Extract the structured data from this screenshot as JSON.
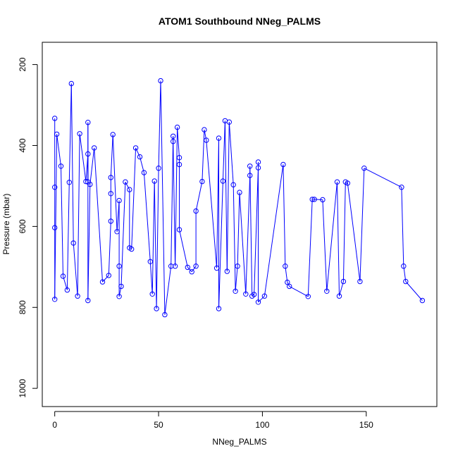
{
  "chart_data": {
    "type": "scatter",
    "title": "ATOM1 Southbound NNeg_PALMS",
    "xlabel": "NNeg_PALMS",
    "ylabel": "Pressure (mbar)",
    "xlim": [
      -6,
      184
    ],
    "ylim": [
      1045,
      145
    ],
    "y_reversed": true,
    "x_ticks": [
      0,
      50,
      100,
      150
    ],
    "y_ticks": [
      200,
      400,
      600,
      800,
      1000
    ],
    "grid": false,
    "legend": "none",
    "line_color": "#0000ff",
    "marker": "open-circle",
    "series": [
      {
        "points": [
          [
            0,
            333
          ],
          [
            0,
            503
          ],
          [
            0,
            603
          ],
          [
            0,
            780
          ],
          [
            1,
            372
          ],
          [
            3,
            451
          ],
          [
            4,
            723
          ],
          [
            6,
            757
          ],
          [
            7,
            491
          ],
          [
            8,
            247
          ],
          [
            9,
            641
          ],
          [
            11,
            772
          ],
          [
            12,
            371
          ],
          [
            15,
            489
          ],
          [
            16,
            421
          ],
          [
            16,
            490
          ],
          [
            16,
            343
          ],
          [
            16,
            783
          ],
          [
            17,
            496
          ],
          [
            19,
            406
          ],
          [
            23,
            737
          ],
          [
            26,
            721
          ],
          [
            27,
            587
          ],
          [
            27,
            519
          ],
          [
            27,
            479
          ],
          [
            28,
            373
          ],
          [
            30,
            613
          ],
          [
            31,
            536
          ],
          [
            31,
            698
          ],
          [
            31,
            773
          ],
          [
            32,
            748
          ],
          [
            34,
            490
          ],
          [
            36,
            509
          ],
          [
            36,
            653
          ],
          [
            37,
            656
          ],
          [
            39,
            406
          ],
          [
            41,
            428
          ],
          [
            43,
            467
          ],
          [
            46,
            687
          ],
          [
            47,
            767
          ],
          [
            48,
            488
          ],
          [
            49,
            803
          ],
          [
            50,
            456
          ],
          [
            51,
            240
          ],
          [
            53,
            818
          ],
          [
            56,
            698
          ],
          [
            57,
            377
          ],
          [
            57,
            390
          ],
          [
            58,
            698
          ],
          [
            59,
            355
          ],
          [
            60,
            430
          ],
          [
            60,
            447
          ],
          [
            60,
            608
          ],
          [
            64,
            701
          ],
          [
            66,
            712
          ],
          [
            68,
            698
          ],
          [
            68,
            562
          ],
          [
            71,
            489
          ],
          [
            72,
            361
          ],
          [
            73,
            387
          ],
          [
            78,
            703
          ],
          [
            79,
            382
          ],
          [
            79,
            803
          ],
          [
            81,
            488
          ],
          [
            82,
            339
          ],
          [
            83,
            711
          ],
          [
            84,
            342
          ],
          [
            86,
            497
          ],
          [
            87,
            760
          ],
          [
            88,
            698
          ],
          [
            89,
            516
          ],
          [
            92,
            767
          ],
          [
            94,
            474
          ],
          [
            94,
            451
          ],
          [
            95,
            772
          ],
          [
            96,
            768
          ],
          [
            98,
            455
          ],
          [
            98,
            441
          ],
          [
            98,
            787
          ],
          [
            101,
            772
          ],
          [
            110,
            447
          ],
          [
            111,
            698
          ],
          [
            112,
            738
          ],
          [
            113,
            748
          ],
          [
            122,
            773
          ],
          [
            124,
            533
          ],
          [
            125,
            533
          ],
          [
            129,
            534
          ],
          [
            131,
            760
          ],
          [
            136,
            490
          ],
          [
            137,
            772
          ],
          [
            139,
            736
          ],
          [
            140,
            490
          ],
          [
            141,
            493
          ],
          [
            147,
            736
          ],
          [
            149,
            456
          ],
          [
            167,
            503
          ],
          [
            168,
            698
          ],
          [
            169,
            736
          ],
          [
            177,
            783
          ]
        ]
      }
    ]
  }
}
